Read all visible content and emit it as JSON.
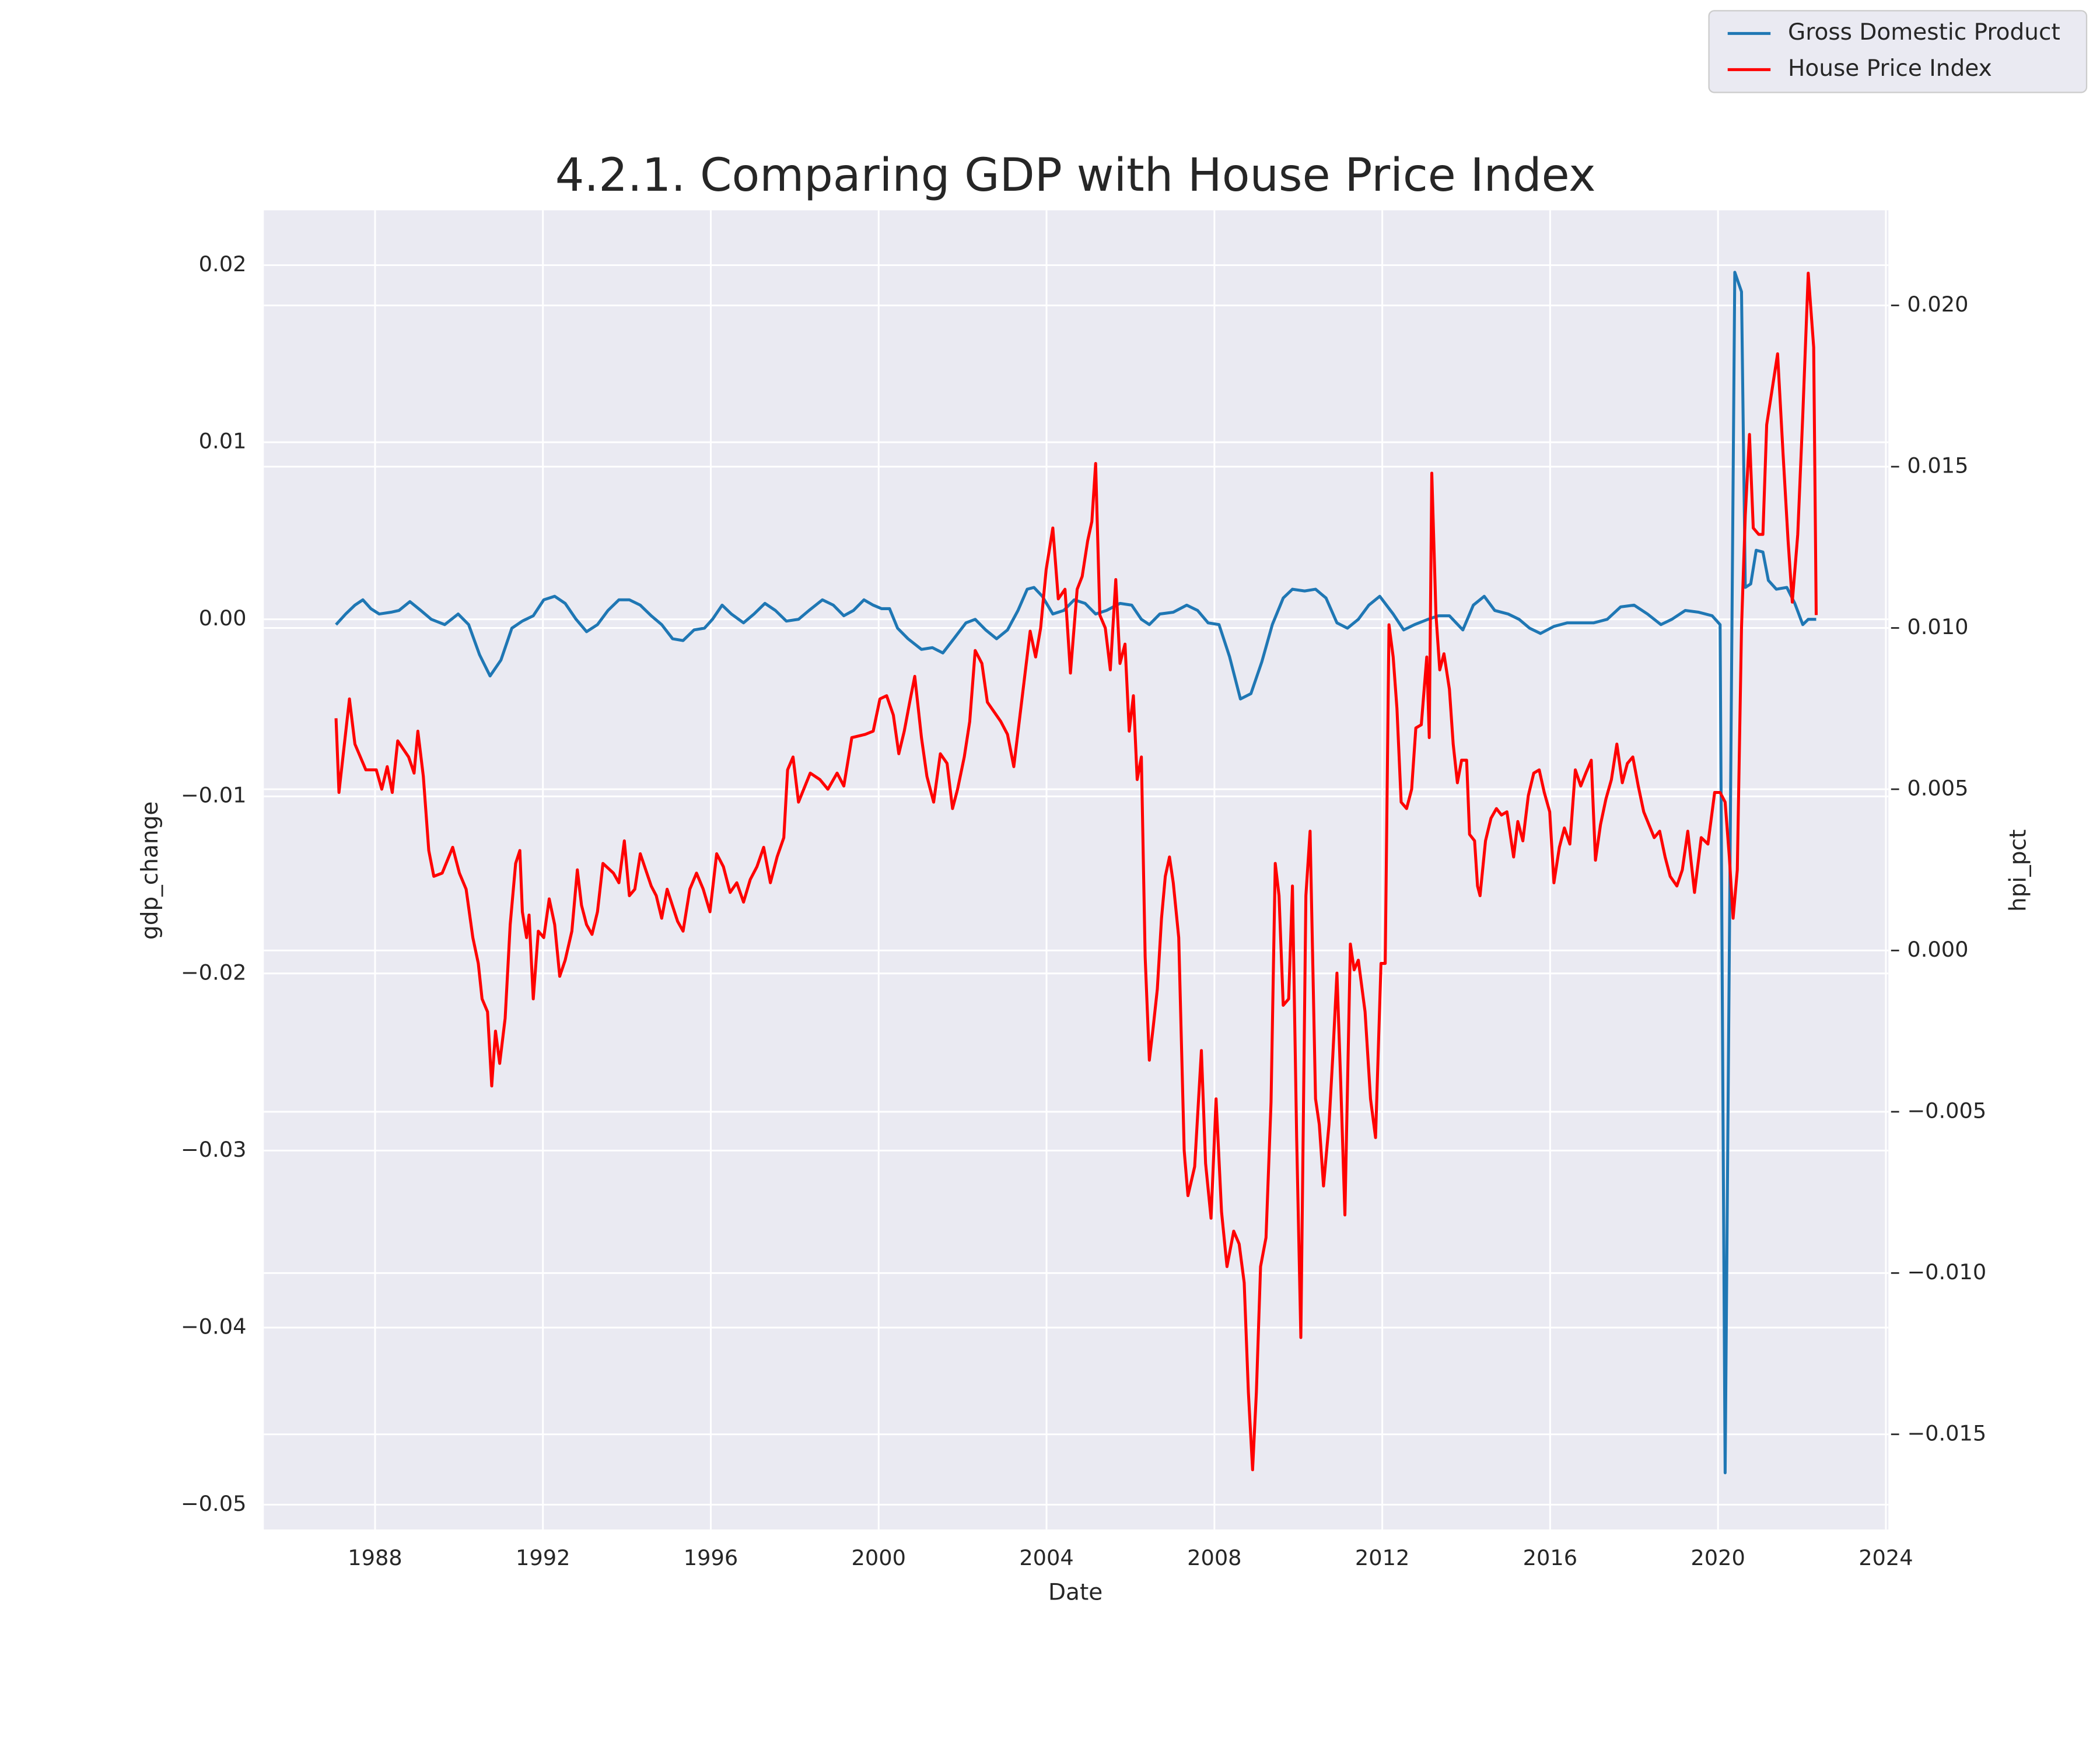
{
  "chart_data": {
    "type": "line",
    "title": "4.2.1. Comparing GDP with House Price Index",
    "x_label": "Date",
    "y_label": "gdp_change",
    "y2_label": "hpi_pct",
    "grid": true,
    "legend": "upper right",
    "xlim": [
      1985.35,
      2024.06
    ],
    "xticks": [
      1988,
      1992,
      1996,
      2000,
      2004,
      2008,
      2012,
      2016,
      2020,
      2024
    ],
    "ylim": [
      -0.0514,
      0.0231
    ],
    "yticks": [
      {
        "value": -0.05,
        "label": "−0.05"
      },
      {
        "value": -0.04,
        "label": "−0.04"
      },
      {
        "value": -0.03,
        "label": "−0.03"
      },
      {
        "value": -0.02,
        "label": "−0.02"
      },
      {
        "value": -0.01,
        "label": "−0.01"
      },
      {
        "value": 0,
        "label": "0.00"
      },
      0.01,
      0.02
    ],
    "y2lim": [
      -0.01795,
      0.02295
    ],
    "y2ticks": [
      {
        "value": -0.015,
        "label": "−0.015"
      },
      {
        "value": -0.01,
        "label": "−0.010"
      },
      {
        "value": -0.005,
        "label": "−0.005"
      },
      {
        "value": 0,
        "label": "0.000"
      },
      {
        "value": 0.005,
        "label": "0.005"
      },
      {
        "value": 0.01,
        "label": "0.010"
      },
      {
        "value": 0.015,
        "label": "0.015"
      },
      {
        "value": 0.02,
        "label": "0.020"
      }
    ],
    "series": [
      {
        "name": "Gross Domestic Product",
        "color": "#1f77b4",
        "x": [
          1987.07,
          1987.3,
          1987.52,
          1987.71,
          1987.9,
          1988.1,
          1988.38,
          1988.57,
          1988.83,
          1989.09,
          1989.34,
          1989.66,
          1989.98,
          1990.23,
          1990.49,
          1990.74,
          1991.0,
          1991.26,
          1991.51,
          1991.77,
          1992.02,
          1992.28,
          1992.53,
          1992.79,
          1993.04,
          1993.3,
          1993.55,
          1993.81,
          1994.06,
          1994.32,
          1994.58,
          1994.83,
          1995.09,
          1995.34,
          1995.6,
          1995.85,
          1996.04,
          1996.27,
          1996.49,
          1996.78,
          1997.03,
          1997.29,
          1997.54,
          1997.8,
          1998.09,
          1998.34,
          1998.66,
          1998.92,
          1999.17,
          1999.4,
          1999.65,
          1999.87,
          2000.07,
          2000.26,
          2000.45,
          2000.7,
          2001.02,
          2001.28,
          2001.53,
          2001.79,
          2002.08,
          2002.3,
          2002.55,
          2002.81,
          2003.07,
          2003.32,
          2003.54,
          2003.7,
          2003.9,
          2004.15,
          2004.41,
          2004.66,
          2004.92,
          2005.17,
          2005.43,
          2005.75,
          2006.03,
          2006.26,
          2006.45,
          2006.7,
          2007.02,
          2007.34,
          2007.6,
          2007.85,
          2008.11,
          2008.36,
          2008.62,
          2008.87,
          2009.13,
          2009.38,
          2009.64,
          2009.86,
          2010.15,
          2010.41,
          2010.66,
          2010.92,
          2011.17,
          2011.43,
          2011.68,
          2011.94,
          2012.26,
          2012.51,
          2012.77,
          2013.09,
          2013.34,
          2013.6,
          2013.92,
          2014.17,
          2014.43,
          2014.68,
          2015.0,
          2015.26,
          2015.51,
          2015.77,
          2016.09,
          2016.41,
          2016.73,
          2017.04,
          2017.36,
          2017.68,
          2018.0,
          2018.32,
          2018.64,
          2018.9,
          2019.22,
          2019.54,
          2019.86,
          2020.05,
          2020.17,
          2020.4,
          2020.56,
          2020.65,
          2020.78,
          2020.91,
          2021.07,
          2021.2,
          2021.39,
          2021.64,
          2021.83,
          2022.02,
          2022.15,
          2022.34
        ],
        "values": [
          -0.0003,
          0.0003,
          0.0008,
          0.0011,
          0.0006,
          0.0003,
          0.0004,
          0.0005,
          0.001,
          0.0005,
          0.0,
          -0.0003,
          0.0003,
          -0.0003,
          -0.002,
          -0.0032,
          -0.0023,
          -0.0005,
          -0.0001,
          0.0002,
          0.0011,
          0.0013,
          0.0009,
          0.0,
          -0.0007,
          -0.0003,
          0.0005,
          0.0011,
          0.0011,
          0.0008,
          0.0002,
          -0.0003,
          -0.0011,
          -0.0012,
          -0.0006,
          -0.0005,
          0.0,
          0.0008,
          0.0003,
          -0.0002,
          0.0003,
          0.0009,
          0.0005,
          -0.0001,
          0.0,
          0.0005,
          0.0011,
          0.0008,
          0.0002,
          0.0005,
          0.0011,
          0.0008,
          0.0006,
          0.0006,
          -0.0005,
          -0.0011,
          -0.0017,
          -0.0016,
          -0.0019,
          -0.0011,
          -0.0002,
          0.0,
          -0.0006,
          -0.0011,
          -0.0006,
          0.0005,
          0.0017,
          0.0018,
          0.0013,
          0.0003,
          0.0005,
          0.0011,
          0.0009,
          0.0003,
          0.0005,
          0.0009,
          0.0008,
          0.0,
          -0.0003,
          0.0003,
          0.0004,
          0.0008,
          0.0005,
          -0.0002,
          -0.0003,
          -0.0021,
          -0.0045,
          -0.0042,
          -0.0024,
          -0.0003,
          0.0012,
          0.0017,
          0.0016,
          0.0017,
          0.0012,
          -0.0002,
          -0.0005,
          0.0,
          0.0008,
          0.0013,
          0.0003,
          -0.0006,
          -0.0003,
          0.0,
          0.0002,
          0.0002,
          -0.0006,
          0.0008,
          0.0013,
          0.0005,
          0.0003,
          0.0,
          -0.0005,
          -0.0008,
          -0.0004,
          -0.0002,
          -0.0002,
          -0.0002,
          0.0,
          0.0007,
          0.0008,
          0.0003,
          -0.0003,
          0.0,
          0.0005,
          0.0004,
          0.0002,
          -0.0003,
          -0.0482,
          0.0196,
          0.0185,
          0.0018,
          0.002,
          0.0039,
          0.0038,
          0.0022,
          0.0017,
          0.0018,
          0.0009,
          -0.0003,
          0.0,
          0.0
        ]
      },
      {
        "name": "House Price Index",
        "color": "#ff0000",
        "axis": "y2",
        "x": [
          1987.07,
          1987.14,
          1987.39,
          1987.52,
          1987.78,
          1988.03,
          1988.16,
          1988.29,
          1988.41,
          1988.54,
          1988.8,
          1988.93,
          1989.02,
          1989.15,
          1989.28,
          1989.4,
          1989.6,
          1989.85,
          1990.01,
          1990.17,
          1990.33,
          1990.46,
          1990.55,
          1990.68,
          1990.78,
          1990.87,
          1990.97,
          1991.1,
          1991.22,
          1991.35,
          1991.45,
          1991.51,
          1991.61,
          1991.67,
          1991.77,
          1991.89,
          1992.02,
          1992.15,
          1992.28,
          1992.4,
          1992.53,
          1992.69,
          1992.82,
          1992.92,
          1993.04,
          1993.17,
          1993.3,
          1993.43,
          1993.68,
          1993.81,
          1993.94,
          1994.06,
          1994.19,
          1994.32,
          1994.58,
          1994.7,
          1994.83,
          1994.96,
          1995.21,
          1995.34,
          1995.5,
          1995.66,
          1995.82,
          1995.98,
          1996.14,
          1996.3,
          1996.46,
          1996.62,
          1996.78,
          1996.94,
          1997.1,
          1997.26,
          1997.42,
          1997.58,
          1997.74,
          1997.83,
          1997.96,
          1998.09,
          1998.37,
          1998.6,
          1998.79,
          1999.01,
          1999.17,
          1999.36,
          1999.68,
          1999.87,
          2000.03,
          2000.19,
          2000.35,
          2000.48,
          2000.61,
          2000.74,
          2000.86,
          2001.02,
          2001.15,
          2001.31,
          2001.47,
          2001.63,
          2001.76,
          2001.88,
          2002.04,
          2002.17,
          2002.3,
          2002.46,
          2002.59,
          2002.91,
          2003.07,
          2003.22,
          2003.35,
          2003.48,
          2003.61,
          2003.74,
          2003.86,
          2003.99,
          2004.15,
          2004.28,
          2004.44,
          2004.57,
          2004.73,
          2004.85,
          2004.98,
          2005.08,
          2005.17,
          2005.27,
          2005.4,
          2005.52,
          2005.65,
          2005.75,
          2005.87,
          2005.97,
          2006.07,
          2006.16,
          2006.26,
          2006.35,
          2006.45,
          2006.54,
          2006.64,
          2006.74,
          2006.83,
          2006.93,
          2007.02,
          2007.15,
          2007.28,
          2007.37,
          2007.53,
          2007.69,
          2007.79,
          2007.92,
          2008.04,
          2008.17,
          2008.3,
          2008.46,
          2008.59,
          2008.71,
          2008.81,
          2008.91,
          2009.0,
          2009.1,
          2009.23,
          2009.35,
          2009.45,
          2009.54,
          2009.64,
          2009.77,
          2009.86,
          2009.96,
          2010.06,
          2010.18,
          2010.28,
          2010.41,
          2010.5,
          2010.6,
          2010.73,
          2010.82,
          2010.92,
          2011.01,
          2011.11,
          2011.24,
          2011.33,
          2011.43,
          2011.59,
          2011.72,
          2011.84,
          2011.97,
          2012.07,
          2012.16,
          2012.26,
          2012.35,
          2012.45,
          2012.58,
          2012.7,
          2012.8,
          2012.93,
          2013.06,
          2013.12,
          2013.18,
          2013.28,
          2013.37,
          2013.47,
          2013.6,
          2013.69,
          2013.79,
          2013.89,
          2014.01,
          2014.08,
          2014.2,
          2014.27,
          2014.33,
          2014.46,
          2014.59,
          2014.72,
          2014.84,
          2014.97,
          2015.13,
          2015.23,
          2015.35,
          2015.48,
          2015.61,
          2015.74,
          2015.86,
          2015.99,
          2016.09,
          2016.22,
          2016.34,
          2016.47,
          2016.6,
          2016.73,
          2016.85,
          2016.98,
          2017.08,
          2017.2,
          2017.33,
          2017.46,
          2017.59,
          2017.72,
          2017.84,
          2017.97,
          2018.1,
          2018.23,
          2018.48,
          2018.61,
          2018.74,
          2018.86,
          2019.02,
          2019.15,
          2019.28,
          2019.44,
          2019.6,
          2019.76,
          2019.92,
          2020.05,
          2020.17,
          2020.27,
          2020.36,
          2020.46,
          2020.56,
          2020.65,
          2020.75,
          2020.84,
          2020.97,
          2021.07,
          2021.16,
          2021.29,
          2021.42,
          2021.55,
          2021.67,
          2021.77,
          2021.9,
          2022.02,
          2022.15,
          2022.28,
          2022.34
        ],
        "values": [
          0.0072,
          0.0049,
          0.0078,
          0.0064,
          0.0056,
          0.0056,
          0.005,
          0.0057,
          0.0049,
          0.0065,
          0.006,
          0.0055,
          0.0068,
          0.0054,
          0.0031,
          0.0023,
          0.0024,
          0.0032,
          0.0024,
          0.0019,
          0.0004,
          -0.0004,
          -0.0015,
          -0.0019,
          -0.0042,
          -0.0025,
          -0.0035,
          -0.0021,
          0.0008,
          0.0027,
          0.0031,
          0.0012,
          0.0004,
          0.0011,
          -0.0015,
          0.0006,
          0.0004,
          0.0016,
          0.0008,
          -0.0008,
          -0.0003,
          0.0006,
          0.0025,
          0.0014,
          0.0008,
          0.0005,
          0.0012,
          0.0027,
          0.0024,
          0.0021,
          0.0034,
          0.0017,
          0.0019,
          0.003,
          0.002,
          0.0017,
          0.001,
          0.0019,
          0.0009,
          0.0006,
          0.0019,
          0.0024,
          0.0019,
          0.0012,
          0.003,
          0.0026,
          0.0018,
          0.0021,
          0.0015,
          0.0022,
          0.0026,
          0.0032,
          0.0021,
          0.0029,
          0.0035,
          0.0056,
          0.006,
          0.0046,
          0.0055,
          0.0053,
          0.005,
          0.0055,
          0.0051,
          0.0066,
          0.0067,
          0.0068,
          0.0078,
          0.0079,
          0.0073,
          0.0061,
          0.0068,
          0.0077,
          0.0085,
          0.0066,
          0.0054,
          0.0046,
          0.0061,
          0.0058,
          0.0044,
          0.005,
          0.006,
          0.0071,
          0.0093,
          0.0089,
          0.0077,
          0.0071,
          0.0067,
          0.0057,
          0.0071,
          0.0085,
          0.0099,
          0.0091,
          0.01,
          0.0118,
          0.0131,
          0.0109,
          0.0112,
          0.0086,
          0.0112,
          0.0116,
          0.0127,
          0.0133,
          0.0151,
          0.0104,
          0.01,
          0.0087,
          0.0115,
          0.0089,
          0.0095,
          0.0068,
          0.0079,
          0.0053,
          0.006,
          -0.0002,
          -0.0034,
          -0.0024,
          -0.0012,
          0.001,
          0.0023,
          0.0029,
          0.0021,
          0.0004,
          -0.0062,
          -0.0076,
          -0.0067,
          -0.0031,
          -0.0066,
          -0.0083,
          -0.0046,
          -0.0081,
          -0.0098,
          -0.0087,
          -0.0091,
          -0.0103,
          -0.0137,
          -0.0161,
          -0.0137,
          -0.0098,
          -0.0089,
          -0.0047,
          0.0027,
          0.0017,
          -0.0017,
          -0.0015,
          0.002,
          -0.0058,
          -0.012,
          0.0017,
          0.0037,
          -0.0046,
          -0.0054,
          -0.0073,
          -0.0054,
          -0.0033,
          -0.0007,
          -0.0041,
          -0.0082,
          0.0002,
          -0.0006,
          -0.0003,
          -0.0019,
          -0.0046,
          -0.0058,
          -0.0004,
          -0.0004,
          0.0101,
          0.0091,
          0.0075,
          0.0046,
          0.0044,
          0.005,
          0.0069,
          0.007,
          0.0091,
          0.0066,
          0.0148,
          0.0104,
          0.0087,
          0.0092,
          0.0081,
          0.0064,
          0.0052,
          0.0059,
          0.0059,
          0.0036,
          0.0034,
          0.002,
          0.0017,
          0.0034,
          0.0041,
          0.0044,
          0.0042,
          0.0043,
          0.0029,
          0.004,
          0.0034,
          0.0048,
          0.0055,
          0.0056,
          0.0049,
          0.0043,
          0.0021,
          0.0032,
          0.0038,
          0.0033,
          0.0056,
          0.0051,
          0.0055,
          0.0059,
          0.0028,
          0.0039,
          0.0047,
          0.0053,
          0.0064,
          0.0052,
          0.0058,
          0.006,
          0.0051,
          0.0043,
          0.0035,
          0.0037,
          0.0029,
          0.0023,
          0.002,
          0.0025,
          0.0037,
          0.0018,
          0.0035,
          0.0033,
          0.0049,
          0.0049,
          0.0046,
          0.0029,
          0.001,
          0.0025,
          0.01,
          0.0135,
          0.016,
          0.0131,
          0.0129,
          0.0129,
          0.0163,
          0.0174,
          0.0185,
          0.0154,
          0.0127,
          0.0108,
          0.0129,
          0.0166,
          0.021,
          0.0187,
          0.0104
        ]
      }
    ]
  }
}
